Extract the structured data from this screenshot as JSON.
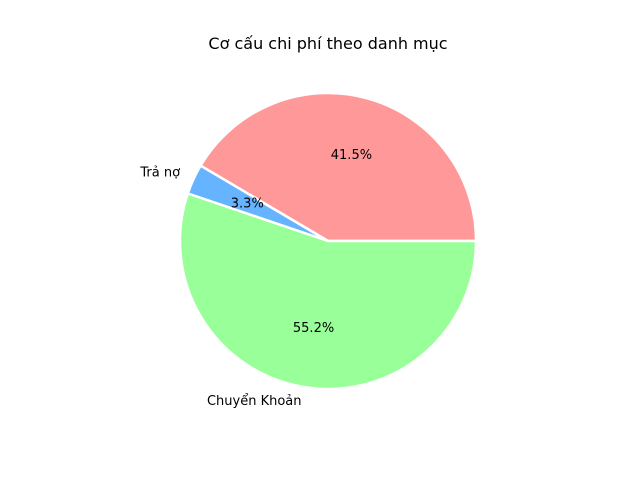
{
  "chart_data": {
    "type": "pie",
    "title": "Cơ cấu chi phí theo danh mục",
    "slices": [
      {
        "label": "",
        "value": 41.5,
        "pct_label": "41.5%",
        "color": "#ff9999"
      },
      {
        "label": "Trả nợ",
        "value": 3.3,
        "pct_label": "3.3%",
        "color": "#66b3ff"
      },
      {
        "label": "Chuyển Khoản",
        "value": 55.2,
        "pct_label": "55.2%",
        "color": "#99ff99"
      }
    ],
    "start_angle_deg": 0,
    "direction": "counterclockwise",
    "legend": false
  }
}
